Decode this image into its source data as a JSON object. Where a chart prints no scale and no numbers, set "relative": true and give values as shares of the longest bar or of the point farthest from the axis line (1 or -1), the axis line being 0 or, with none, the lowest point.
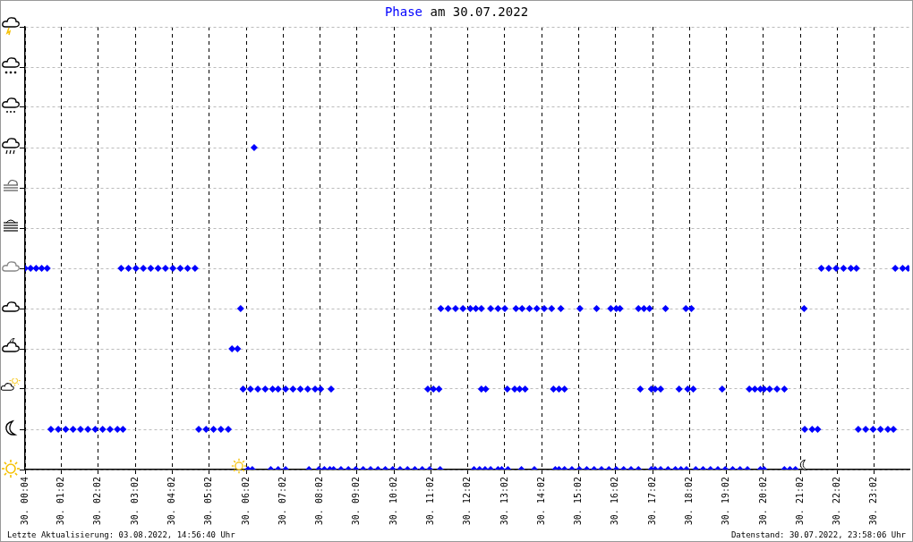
{
  "chart_data": {
    "type": "scatter",
    "title": "Phase am 30.07.2022",
    "marker": "diamond",
    "grid": true,
    "legend": false,
    "xlim": [
      "2022-07-30T00:03",
      "2022-07-30T23:59"
    ],
    "relative": true,
    "xticks": [
      {
        "value": "2022-07-30T00:04",
        "label": "30. 00:04"
      },
      {
        "value": "2022-07-30T01:02",
        "label": "30. 01:02"
      },
      {
        "value": "2022-07-30T02:02",
        "label": "30. 02:02"
      },
      {
        "value": "2022-07-30T03:02",
        "label": "30. 03:02"
      },
      {
        "value": "2022-07-30T04:02",
        "label": "30. 04:02"
      },
      {
        "value": "2022-07-30T05:02",
        "label": "30. 05:02"
      },
      {
        "value": "2022-07-30T06:02",
        "label": "30. 06:02"
      },
      {
        "value": "2022-07-30T07:02",
        "label": "30. 07:02"
      },
      {
        "value": "2022-07-30T08:02",
        "label": "30. 08:02"
      },
      {
        "value": "2022-07-30T09:02",
        "label": "30. 09:02"
      },
      {
        "value": "2022-07-30T10:02",
        "label": "30. 10:02"
      },
      {
        "value": "2022-07-30T11:02",
        "label": "30. 11:02"
      },
      {
        "value": "2022-07-30T12:02",
        "label": "30. 12:02"
      },
      {
        "value": "2022-07-30T13:02",
        "label": "30. 13:02"
      },
      {
        "value": "2022-07-30T14:02",
        "label": "30. 14:02"
      },
      {
        "value": "2022-07-30T15:02",
        "label": "30. 15:02"
      },
      {
        "value": "2022-07-30T16:02",
        "label": "30. 16:02"
      },
      {
        "value": "2022-07-30T17:02",
        "label": "30. 17:02"
      },
      {
        "value": "2022-07-30T18:02",
        "label": "30. 18:02"
      },
      {
        "value": "2022-07-30T19:02",
        "label": "30. 19:02"
      },
      {
        "value": "2022-07-30T20:02",
        "label": "30. 20:02"
      },
      {
        "value": "2022-07-30T21:02",
        "label": "30. 21:02"
      },
      {
        "value": "2022-07-30T22:02",
        "label": "30. 22:02"
      },
      {
        "value": "2022-07-30T23:02",
        "label": "30. 23:02"
      }
    ],
    "annotations": [
      "Letzte Aktualisierung: 03.08.2022, 14:56:40 Uhr",
      "Datenstand: 30.07.2022, 23:58:06 Uhr"
    ],
    "series": [
      {
        "color": "#0000ff",
        "x": [
          "2022-07-30T00:03",
          "2022-07-30T00:12",
          "2022-07-30T00:21",
          "2022-07-30T00:30",
          "2022-07-30T00:39",
          "2022-07-30T02:39",
          "2022-07-30T02:51",
          "2022-07-30T03:03",
          "2022-07-30T03:15",
          "2022-07-30T03:27",
          "2022-07-30T03:39",
          "2022-07-30T03:51",
          "2022-07-30T04:03",
          "2022-07-30T04:15",
          "2022-07-30T04:27",
          "2022-07-30T04:39",
          "2022-07-30T21:36",
          "2022-07-30T21:48",
          "2022-07-30T22:00",
          "2022-07-30T22:12",
          "2022-07-30T22:24",
          "2022-07-30T22:33",
          "2022-07-30T23:36",
          "2022-07-30T23:48",
          "2022-07-30T23:57",
          "2022-07-30T00:45",
          "2022-07-30T00:57",
          "2022-07-30T01:09",
          "2022-07-30T01:21",
          "2022-07-30T01:33",
          "2022-07-30T01:45",
          "2022-07-30T01:57",
          "2022-07-30T02:09",
          "2022-07-30T02:21",
          "2022-07-30T02:33",
          "2022-07-30T02:42",
          "2022-07-30T04:45",
          "2022-07-30T04:57",
          "2022-07-30T05:09",
          "2022-07-30T05:21",
          "2022-07-30T05:33",
          "2022-07-30T21:09",
          "2022-07-30T21:21",
          "2022-07-30T21:30",
          "2022-07-30T22:36",
          "2022-07-30T22:48",
          "2022-07-30T23:00",
          "2022-07-30T23:12",
          "2022-07-30T23:24",
          "2022-07-30T23:33",
          "2022-07-30T05:39",
          "2022-07-30T05:48",
          "2022-07-30T05:53",
          "2022-07-30T11:18",
          "2022-07-30T11:30",
          "2022-07-30T11:42",
          "2022-07-30T11:54",
          "2022-07-30T12:06",
          "2022-07-30T12:15",
          "2022-07-30T12:24",
          "2022-07-30T12:39",
          "2022-07-30T12:51",
          "2022-07-30T13:02",
          "2022-07-30T13:20",
          "2022-07-30T13:30",
          "2022-07-30T13:42",
          "2022-07-30T13:54",
          "2022-07-30T14:06",
          "2022-07-30T14:18",
          "2022-07-30T14:33",
          "2022-07-30T15:04",
          "2022-07-30T15:31",
          "2022-07-30T15:54",
          "2022-07-30T16:03",
          "2022-07-30T16:09",
          "2022-07-30T16:39",
          "2022-07-30T16:48",
          "2022-07-30T16:57",
          "2022-07-30T17:23",
          "2022-07-30T17:56",
          "2022-07-30T18:05",
          "2022-07-30T21:08",
          "2022-07-30T06:15",
          "2022-07-30T05:57",
          "2022-07-30T06:09",
          "2022-07-30T06:21",
          "2022-07-30T06:33",
          "2022-07-30T06:45",
          "2022-07-30T06:54",
          "2022-07-30T07:06",
          "2022-07-30T07:18",
          "2022-07-30T07:30",
          "2022-07-30T07:42",
          "2022-07-30T07:54",
          "2022-07-30T08:03",
          "2022-07-30T08:20",
          "2022-07-30T10:57",
          "2022-07-30T11:06",
          "2022-07-30T11:15",
          "2022-07-30T12:24",
          "2022-07-30T12:31",
          "2022-07-30T13:06",
          "2022-07-30T13:18",
          "2022-07-30T13:26",
          "2022-07-30T13:35",
          "2022-07-30T14:21",
          "2022-07-30T14:30",
          "2022-07-30T14:39",
          "2022-07-30T16:42",
          "2022-07-30T17:00",
          "2022-07-30T17:06",
          "2022-07-30T17:15",
          "2022-07-30T17:45",
          "2022-07-30T17:59",
          "2022-07-30T18:08",
          "2022-07-30T18:55",
          "2022-07-30T19:39",
          "2022-07-30T19:48",
          "2022-07-30T19:57",
          "2022-07-30T20:03",
          "2022-07-30T20:12",
          "2022-07-30T20:24",
          "2022-07-30T20:36",
          "2022-07-30T06:05",
          "2022-07-30T06:12",
          "2022-07-30T06:42",
          "2022-07-30T06:54",
          "2022-07-30T07:06",
          "2022-07-30T07:44",
          "2022-07-30T08:00",
          "2022-07-30T08:09",
          "2022-07-30T08:18",
          "2022-07-30T08:24",
          "2022-07-30T08:36",
          "2022-07-30T08:48",
          "2022-07-30T09:00",
          "2022-07-30T09:12",
          "2022-07-30T09:24",
          "2022-07-30T09:36",
          "2022-07-30T09:48",
          "2022-07-30T10:00",
          "2022-07-30T10:12",
          "2022-07-30T10:24",
          "2022-07-30T10:36",
          "2022-07-30T10:48",
          "2022-07-30T11:00",
          "2022-07-30T11:17",
          "2022-07-30T12:12",
          "2022-07-30T12:21",
          "2022-07-30T12:30",
          "2022-07-30T12:39",
          "2022-07-30T12:51",
          "2022-07-30T12:57",
          "2022-07-30T13:07",
          "2022-07-30T13:29",
          "2022-07-30T13:50",
          "2022-07-30T14:24",
          "2022-07-30T14:30",
          "2022-07-30T14:39",
          "2022-07-30T14:51",
          "2022-07-30T15:03",
          "2022-07-30T15:15",
          "2022-07-30T15:27",
          "2022-07-30T15:39",
          "2022-07-30T15:51",
          "2022-07-30T16:03",
          "2022-07-30T16:15",
          "2022-07-30T16:27",
          "2022-07-30T16:39",
          "2022-07-30T17:00",
          "2022-07-30T17:06",
          "2022-07-30T17:15",
          "2022-07-30T17:27",
          "2022-07-30T17:39",
          "2022-07-30T17:48",
          "2022-07-30T17:57",
          "2022-07-30T18:12",
          "2022-07-30T18:24",
          "2022-07-30T18:36",
          "2022-07-30T18:48",
          "2022-07-30T19:00",
          "2022-07-30T19:12",
          "2022-07-30T19:24",
          "2022-07-30T19:36",
          "2022-07-30T19:57",
          "2022-07-30T20:03",
          "2022-07-30T20:36",
          "2022-07-30T20:45",
          "2022-07-30T20:54"
        ],
        "values": [
          0.625,
          0.625,
          0.625,
          0.625,
          0.625,
          0.625,
          0.625,
          0.625,
          0.625,
          0.625,
          0.625,
          0.625,
          0.625,
          0.625,
          0.625,
          0.625,
          0.625,
          0.625,
          0.625,
          0.625,
          0.625,
          0.625,
          0.625,
          0.625,
          0.625,
          0.125,
          0.125,
          0.125,
          0.125,
          0.125,
          0.125,
          0.125,
          0.125,
          0.125,
          0.125,
          0.125,
          0.125,
          0.125,
          0.125,
          0.125,
          0.125,
          0.125,
          0.125,
          0.125,
          0.125,
          0.125,
          0.125,
          0.125,
          0.125,
          0.125,
          0.375,
          0.375,
          0.5,
          0.5,
          0.5,
          0.5,
          0.5,
          0.5,
          0.5,
          0.5,
          0.5,
          0.5,
          0.5,
          0.5,
          0.5,
          0.5,
          0.5,
          0.5,
          0.5,
          0.5,
          0.5,
          0.5,
          0.5,
          0.5,
          0.5,
          0.5,
          0.5,
          0.5,
          0.5,
          0.5,
          0.5,
          0.5,
          1,
          0.25,
          0.25,
          0.25,
          0.25,
          0.25,
          0.25,
          0.25,
          0.25,
          0.25,
          0.25,
          0.25,
          0.25,
          0.25,
          0.25,
          0.25,
          0.25,
          0.25,
          0.25,
          0.25,
          0.25,
          0.25,
          0.25,
          0.25,
          0.25,
          0.25,
          0.25,
          0.25,
          0.25,
          0.25,
          0.25,
          0.25,
          0.25,
          0.25,
          0.25,
          0.25,
          0.25,
          0.25,
          0.25,
          0.25,
          0.25,
          0,
          0,
          0,
          0,
          0,
          0,
          0,
          0,
          0,
          0,
          0,
          0,
          0,
          0,
          0,
          0,
          0,
          0,
          0,
          0,
          0,
          0,
          0,
          0,
          0,
          0,
          0,
          0,
          0,
          0,
          0,
          0,
          0,
          0,
          0,
          0,
          0,
          0,
          0,
          0,
          0,
          0,
          0,
          0,
          0,
          0,
          0,
          0,
          0,
          0,
          0,
          0,
          0,
          0,
          0,
          0,
          0,
          0,
          0,
          0,
          0,
          0,
          0,
          0,
          0,
          0
        ]
      }
    ]
  }
}
